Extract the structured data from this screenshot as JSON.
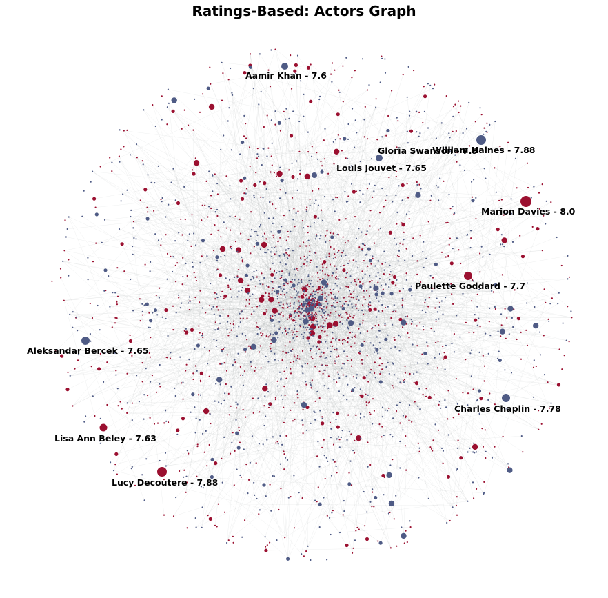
{
  "title": "Ratings-Based: Actors Graph",
  "colors": {
    "red": "#9b1030",
    "blue": "#4f5b85",
    "edge": "#9a9fa3"
  },
  "labels": [
    {
      "name": "Aamir Khan - 7.6",
      "color": "blue"
    },
    {
      "name": "Gloria Swanson - 7.9",
      "color": "blue"
    },
    {
      "name": "William Haines - 7.88",
      "color": "blue"
    },
    {
      "name": "Louis Jouvet - 7.65",
      "color": "blue"
    },
    {
      "name": "Marion Davies - 8.0",
      "color": "red"
    },
    {
      "name": "Paulette Goddard - 7.7",
      "color": "red"
    },
    {
      "name": "Aleksandar Bercek - 7.65",
      "color": "blue"
    },
    {
      "name": "Charles Chaplin - 7.78",
      "color": "blue"
    },
    {
      "name": "Lisa Ann Beley - 7.63",
      "color": "red"
    },
    {
      "name": "Lucy Decoutere - 7.88",
      "color": "red"
    }
  ]
}
